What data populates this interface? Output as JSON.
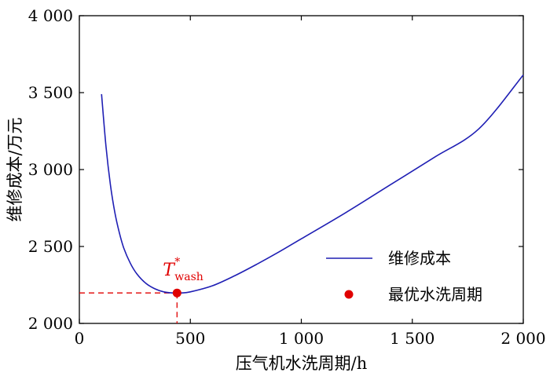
{
  "chart_data": {
    "type": "line",
    "xlabel": "压气机水洗周期/h",
    "ylabel": "维修成本/万元",
    "xlim": [
      0,
      2000
    ],
    "ylim": [
      2000,
      4000
    ],
    "x_ticks": [
      0,
      500,
      1000,
      1500,
      2000
    ],
    "x_tick_labels": [
      "0",
      "500",
      "1 000",
      "1 500",
      "2 000"
    ],
    "y_ticks": [
      2000,
      2500,
      3000,
      3500,
      4000
    ],
    "y_tick_labels": [
      "2 000",
      "2 500",
      "3 000",
      "3 500",
      "4 000"
    ],
    "grid": false,
    "legend_position": "right",
    "series": [
      {
        "name": "维修成本",
        "color": "#1f1fb4",
        "x": [
          100,
          120,
          140,
          160,
          180,
          200,
          230,
          260,
          300,
          340,
          380,
          420,
          460,
          500,
          600,
          700,
          800,
          900,
          1000,
          1200,
          1400,
          1600,
          1800,
          2000
        ],
        "y": [
          3490,
          3150,
          2900,
          2720,
          2590,
          2490,
          2390,
          2320,
          2260,
          2225,
          2205,
          2198,
          2198,
          2205,
          2245,
          2310,
          2385,
          2465,
          2550,
          2720,
          2900,
          3080,
          3265,
          3615
        ]
      }
    ],
    "optimum": {
      "name": "最优水洗周期",
      "color": "#e00000",
      "x": 440,
      "y": 2198,
      "label_main": "T",
      "label_sub": "wash",
      "label_sup": "*"
    }
  }
}
